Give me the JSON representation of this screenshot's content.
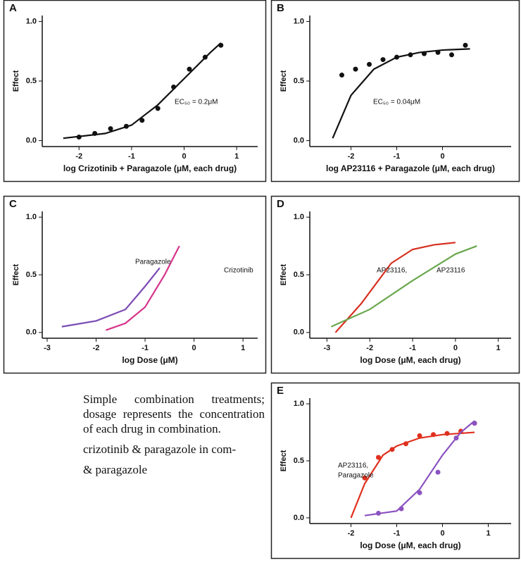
{
  "panels": [
    {
      "label": "A",
      "ylabel": "Effect",
      "xlabel": "log Crizotinib + Paragazole (μM, each drug)",
      "xlim": [
        -2.7,
        1.4
      ],
      "ylim": [
        -0.05,
        1.05
      ],
      "xticks": [
        -2,
        -1,
        0,
        1
      ],
      "yticks": [
        {
          "value": 0,
          "label": "0.0"
        },
        {
          "value": 0.5,
          "label": "0.5"
        },
        {
          "value": 1,
          "label": "1.0"
        }
      ],
      "annotations": [
        "EC₅₀ = 0.2μM"
      ],
      "series": [
        {
          "style": "points",
          "color": "#111111",
          "x": [
            -2,
            -1.7,
            -1.4,
            -1.1,
            -0.8,
            -0.5,
            -0.2,
            0.1,
            0.4,
            0.7
          ],
          "y": [
            0.03,
            0.06,
            0.1,
            0.12,
            0.17,
            0.27,
            0.45,
            0.6,
            0.7,
            0.8
          ]
        },
        {
          "style": "line",
          "color": "#111111",
          "x": [
            -2.3,
            -1.5,
            -1,
            -0.5,
            0,
            0.5,
            0.7
          ],
          "y": [
            0.02,
            0.06,
            0.13,
            0.3,
            0.52,
            0.74,
            0.82
          ]
        }
      ]
    },
    {
      "label": "B",
      "ylabel": "Effect",
      "xlabel": "log AP23116 + Paragazole (μM, each drug)",
      "xlim": [
        -2.9,
        1.5
      ],
      "ylim": [
        -0.05,
        1.05
      ],
      "xticks": [
        -2,
        -1,
        0
      ],
      "yticks": [
        {
          "value": 0,
          "label": "0.0"
        },
        {
          "value": 0.5,
          "label": "0.5"
        },
        {
          "value": 1,
          "label": "1.0"
        }
      ],
      "annotations": [
        "EC₅₀ = 0.04μM"
      ],
      "series": [
        {
          "style": "points",
          "color": "#111111",
          "x": [
            -2.2,
            -1.9,
            -1.6,
            -1.3,
            -1,
            -0.7,
            -0.4,
            -0.1,
            0.2,
            0.5
          ],
          "y": [
            0.55,
            0.6,
            0.64,
            0.68,
            0.7,
            0.72,
            0.73,
            0.74,
            0.72,
            0.8
          ]
        },
        {
          "style": "line",
          "color": "#111111",
          "x": [
            -2.4,
            -2,
            -1.5,
            -1,
            -0.5,
            0,
            0.6
          ],
          "y": [
            0.02,
            0.38,
            0.6,
            0.7,
            0.74,
            0.76,
            0.77
          ]
        }
      ]
    },
    {
      "label": "C",
      "ylabel": "Effect",
      "xlabel": "log Dose (μM)",
      "xlim": [
        -3.1,
        1.3
      ],
      "ylim": [
        -0.05,
        1.05
      ],
      "xticks": [
        -3,
        -2,
        -1,
        0,
        1
      ],
      "yticks": [
        {
          "value": 0,
          "label": "0.0"
        },
        {
          "value": 0.5,
          "label": "0.5"
        },
        {
          "value": 1,
          "label": "1.0"
        }
      ],
      "annotations": [
        "Paragazole",
        "Crizotinib"
      ],
      "series": [
        {
          "style": "line",
          "color": "#7b4bb5",
          "x": [
            -2.7,
            -2,
            -1.4,
            -1,
            -0.7
          ],
          "y": [
            0.05,
            0.1,
            0.2,
            0.4,
            0.56
          ]
        },
        {
          "style": "line",
          "color": "#d6338a",
          "x": [
            -1.8,
            -1.4,
            -1,
            -0.6,
            -0.3
          ],
          "y": [
            0.02,
            0.08,
            0.22,
            0.5,
            0.75
          ]
        }
      ]
    },
    {
      "label": "D",
      "ylabel": "Effect",
      "xlabel": "log Dose (μM, each drug)",
      "xlim": [
        -3.4,
        1.3
      ],
      "ylim": [
        -0.05,
        1.05
      ],
      "xticks": [
        -3,
        -2,
        -1,
        0,
        1
      ],
      "yticks": [
        {
          "value": 0,
          "label": "0.0"
        },
        {
          "value": 0.5,
          "label": "0.5"
        },
        {
          "value": 1,
          "label": "1.0"
        }
      ],
      "annotations": [
        "AP23116,",
        "AP23116"
      ],
      "series": [
        {
          "style": "line",
          "color": "#d62f1f",
          "x": [
            -2.8,
            -2.2,
            -1.5,
            -1,
            -0.5,
            0
          ],
          "y": [
            0,
            0.25,
            0.6,
            0.72,
            0.76,
            0.78
          ]
        },
        {
          "style": "line",
          "color": "#6aa84f",
          "x": [
            -2.9,
            -2,
            -1,
            0,
            0.5
          ],
          "y": [
            0.05,
            0.2,
            0.45,
            0.68,
            0.75
          ]
        }
      ]
    },
    {
      "label": "E",
      "ylabel": "Effect",
      "xlabel": "log Dose (μM, each drug)",
      "xlim": [
        -2.9,
        1.5
      ],
      "ylim": [
        -0.05,
        1.05
      ],
      "xticks": [
        -2,
        -1,
        0,
        1
      ],
      "yticks": [
        {
          "value": 0,
          "label": "0.0"
        },
        {
          "value": 0.5,
          "label": "0.5"
        },
        {
          "value": 1,
          "label": "1.0"
        }
      ],
      "annotations": [
        "AP23116,",
        "Paragazole"
      ],
      "series": [
        {
          "style": "line",
          "color": "#e0301e",
          "x": [
            -2,
            -1.7,
            -1.3,
            -1,
            -0.5,
            0,
            0.7
          ],
          "y": [
            0,
            0.3,
            0.55,
            0.63,
            0.7,
            0.73,
            0.75
          ]
        },
        {
          "style": "points",
          "color": "#e0301e",
          "x": [
            -1.7,
            -1.4,
            -1.1,
            -0.8,
            -0.5,
            -0.2,
            0.1,
            0.4,
            0.7
          ],
          "y": [
            0.35,
            0.53,
            0.6,
            0.65,
            0.72,
            0.73,
            0.74,
            0.76,
            0.83
          ]
        },
        {
          "style": "line",
          "color": "#8b52c1",
          "x": [
            -1.7,
            -1,
            -0.5,
            0,
            0.4,
            0.7
          ],
          "y": [
            0.02,
            0.06,
            0.25,
            0.55,
            0.75,
            0.85
          ]
        },
        {
          "style": "points",
          "color": "#8b52c1",
          "x": [
            -1.4,
            -0.9,
            -0.5,
            -0.1,
            0.3,
            0.7
          ],
          "y": [
            0.04,
            0.08,
            0.22,
            0.4,
            0.7,
            0.83
          ]
        }
      ]
    }
  ],
  "text": {
    "paragraphs": [
      "Simple combination treatments; dosage represents the concentration of each drug in combination.",
      "crizotinib & paragazole in com-",
      "& paragazole"
    ]
  }
}
